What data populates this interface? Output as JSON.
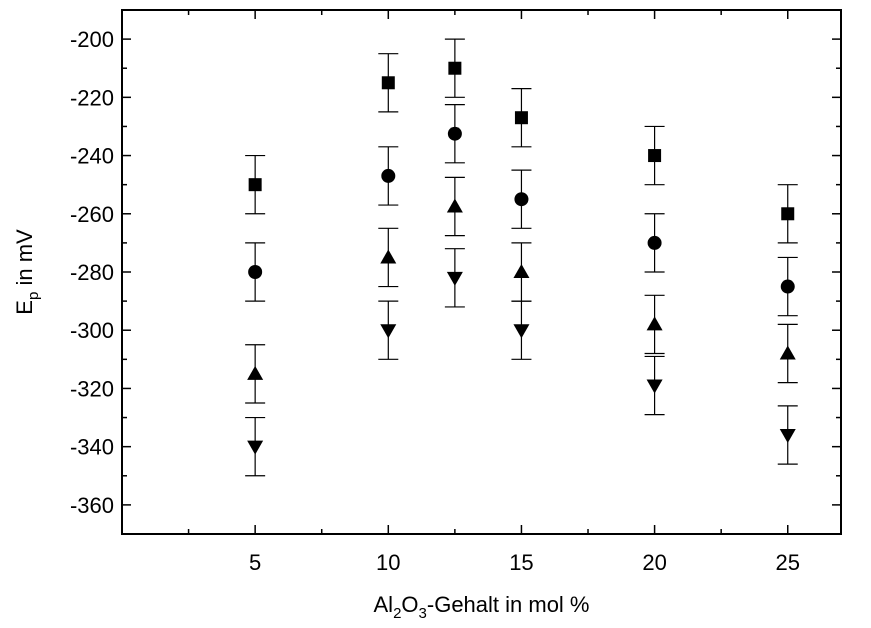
{
  "chart_data": {
    "type": "scatter",
    "title": "",
    "xlabel": {
      "main": "Al",
      "sub1": "2",
      "mid": "O",
      "sub2": "3",
      "rest": "-Gehalt in mol %"
    },
    "ylabel": {
      "main": "E",
      "sub": "p",
      "rest": " in mV"
    },
    "xlim": [
      0,
      27
    ],
    "ylim": [
      -370,
      -190
    ],
    "xticks": [
      5,
      10,
      15,
      20,
      25
    ],
    "xtick_labels": [
      "5",
      "10",
      "15",
      "20",
      "25"
    ],
    "yticks": [
      -200,
      -220,
      -240,
      -260,
      -280,
      -300,
      -320,
      -340,
      -360
    ],
    "ytick_labels": [
      "-200",
      "-220",
      "-240",
      "-260",
      "-280",
      "-300",
      "-320",
      "-340",
      "-360"
    ],
    "grid": false,
    "error_bar": 10,
    "series": [
      {
        "marker": "square",
        "points": [
          {
            "x": 5,
            "y": -250
          },
          {
            "x": 10,
            "y": -215
          },
          {
            "x": 12.5,
            "y": -210
          },
          {
            "x": 15,
            "y": -227
          },
          {
            "x": 20,
            "y": -240
          },
          {
            "x": 25,
            "y": -260
          }
        ]
      },
      {
        "marker": "circle",
        "points": [
          {
            "x": 5,
            "y": -280
          },
          {
            "x": 10,
            "y": -247
          },
          {
            "x": 12.5,
            "y": -232.5
          },
          {
            "x": 15,
            "y": -255
          },
          {
            "x": 20,
            "y": -270
          },
          {
            "x": 25,
            "y": -285
          }
        ]
      },
      {
        "marker": "triangle-up",
        "points": [
          {
            "x": 5,
            "y": -315
          },
          {
            "x": 10,
            "y": -275
          },
          {
            "x": 12.5,
            "y": -257.5
          },
          {
            "x": 15,
            "y": -280
          },
          {
            "x": 20,
            "y": -298
          },
          {
            "x": 25,
            "y": -308
          }
        ]
      },
      {
        "marker": "triangle-down",
        "points": [
          {
            "x": 5,
            "y": -340
          },
          {
            "x": 10,
            "y": -300
          },
          {
            "x": 12.5,
            "y": -282
          },
          {
            "x": 15,
            "y": -300
          },
          {
            "x": 20,
            "y": -319
          },
          {
            "x": 25,
            "y": -336
          }
        ]
      }
    ]
  }
}
